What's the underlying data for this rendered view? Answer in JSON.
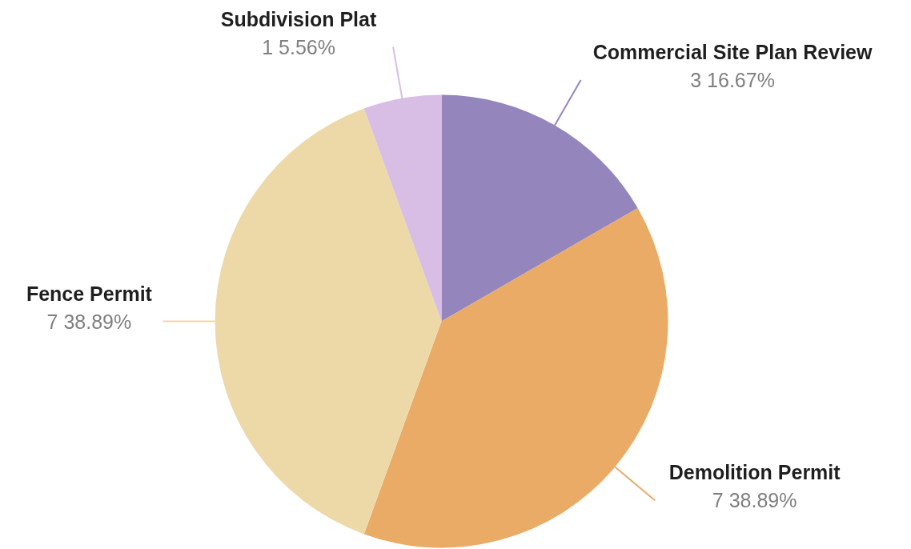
{
  "chart_data": {
    "type": "pie",
    "categories": [
      "Commercial Site Plan Review",
      "Demolition Permit",
      "Fence Permit",
      "Subdivision Plat"
    ],
    "values": [
      3,
      7,
      7,
      1
    ],
    "colors": [
      "#9485bd",
      "#e9ab66",
      "#edd9a8",
      "#d8bde4"
    ],
    "value_labels": [
      "3 16.67%",
      "7 38.89%",
      "7 38.89%",
      "1 5.56%"
    ]
  }
}
